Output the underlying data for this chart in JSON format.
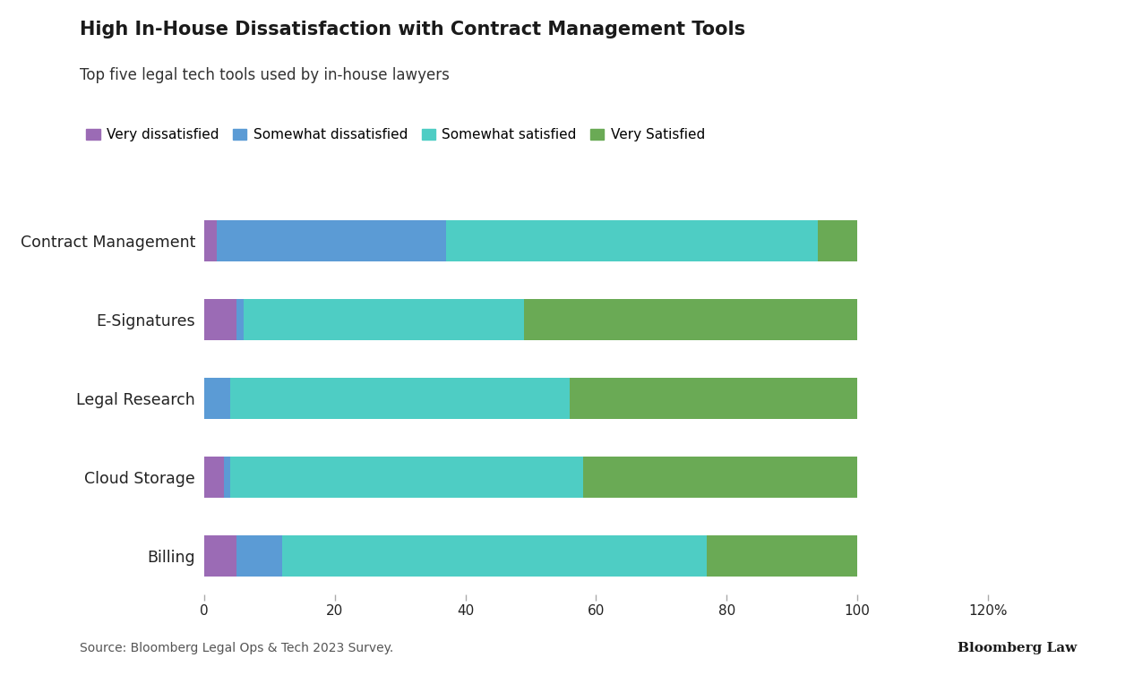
{
  "title": "High In-House Dissatisfaction with Contract Management Tools",
  "subtitle": "Top five legal tech tools used by in-house lawyers",
  "categories": [
    "Contract Management",
    "E-Signatures",
    "Legal Research",
    "Cloud Storage",
    "Billing"
  ],
  "series": {
    "Very dissatisfied": [
      2,
      5,
      0,
      3,
      5
    ],
    "Somewhat dissatisfied": [
      35,
      1,
      4,
      1,
      7
    ],
    "Somewhat satisfied": [
      57,
      43,
      52,
      54,
      65
    ],
    "Very Satisfied": [
      6,
      51,
      44,
      42,
      23
    ]
  },
  "colors": {
    "Very dissatisfied": "#9b6bb5",
    "Somewhat dissatisfied": "#5b9bd5",
    "Somewhat satisfied": "#4ecdc4",
    "Very Satisfied": "#6aaa55"
  },
  "xlim": [
    0,
    125
  ],
  "xticks": [
    0,
    20,
    40,
    60,
    80,
    100,
    120
  ],
  "xticklabels": [
    "0",
    "20",
    "40",
    "60",
    "80",
    "100",
    "120%"
  ],
  "source": "Source: Bloomberg Legal Ops & Tech 2023 Survey.",
  "branding": "Bloomberg Law",
  "background_color": "#ffffff",
  "bar_height": 0.52
}
